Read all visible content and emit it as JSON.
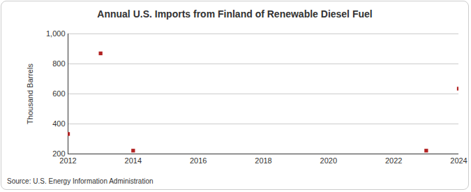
{
  "chart_data": {
    "type": "scatter",
    "title": "Annual U.S. Imports from Finland of Renewable Diesel Fuel",
    "caption": "Source: U.S. Energy Information Administration",
    "y_label": "Thousand Barrels",
    "x": [
      2012,
      2013,
      2014,
      2023,
      2024
    ],
    "values": [
      333,
      870,
      222,
      222,
      635
    ],
    "color": "#b22222",
    "marker": "square",
    "xlim": [
      2012,
      2024
    ],
    "xticks": [
      2012,
      2014,
      2016,
      2018,
      2020,
      2022,
      2024
    ],
    "ylim": [
      200,
      1000
    ],
    "yticks": [
      200,
      400,
      600,
      800,
      {
        "value": 1000,
        "label": "1,000"
      }
    ],
    "grid": true
  }
}
